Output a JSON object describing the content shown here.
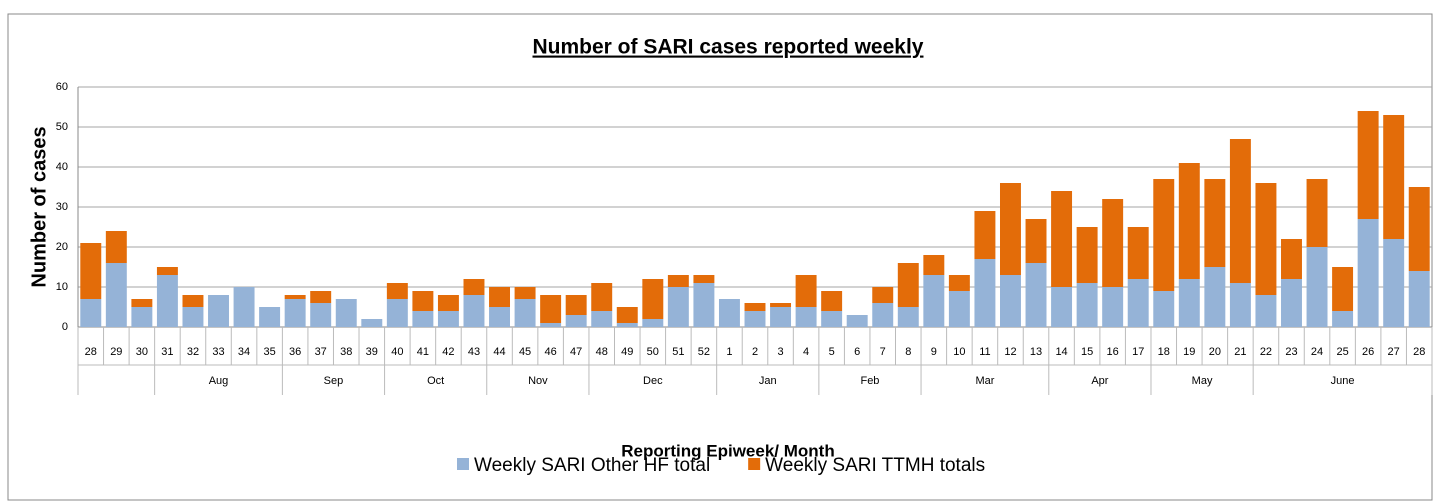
{
  "chart_data": {
    "type": "stacked_bar",
    "title": "Number of SARI cases reported weekly",
    "y_label": "Number of cases",
    "x_label": "Reporting Epiweek/ Month",
    "ylim": [
      0,
      60
    ],
    "yticks": [
      0,
      10,
      20,
      30,
      40,
      50,
      60
    ],
    "grid": true,
    "legend": "bottom",
    "groups": [
      {
        "label": null,
        "categories": [
          "28",
          "29",
          "30"
        ]
      },
      {
        "label": "Aug",
        "categories": [
          "31",
          "32",
          "33",
          "34",
          "35"
        ]
      },
      {
        "label": "Sep",
        "categories": [
          "36",
          "37",
          "38",
          "39"
        ]
      },
      {
        "label": "Oct",
        "categories": [
          "40",
          "41",
          "42",
          "43"
        ]
      },
      {
        "label": "Nov",
        "categories": [
          "44",
          "45",
          "46",
          "47"
        ]
      },
      {
        "label": "Dec",
        "categories": [
          "48",
          "49",
          "50",
          "51",
          "52"
        ]
      },
      {
        "label": "Jan",
        "categories": [
          "1",
          "2",
          "3",
          "4"
        ]
      },
      {
        "label": "Feb",
        "categories": [
          "5",
          "6",
          "7",
          "8"
        ]
      },
      {
        "label": "Mar",
        "categories": [
          "9",
          "10",
          "11",
          "12",
          "13"
        ]
      },
      {
        "label": "Apr",
        "categories": [
          "14",
          "15",
          "16",
          "17"
        ]
      },
      {
        "label": "May",
        "categories": [
          "18",
          "19",
          "20",
          "21"
        ]
      },
      {
        "label": "June",
        "categories": [
          "22",
          "23",
          "24",
          "25",
          "26",
          "27",
          "28"
        ]
      }
    ],
    "series": [
      {
        "name": "Weekly SARI Other HF total",
        "color": "#95b3d7",
        "values": [
          7,
          16,
          5,
          13,
          5,
          8,
          10,
          5,
          7,
          6,
          7,
          2,
          7,
          4,
          4,
          8,
          5,
          7,
          1,
          3,
          4,
          1,
          2,
          10,
          11,
          7,
          4,
          5,
          5,
          4,
          3,
          6,
          5,
          13,
          9,
          17,
          13,
          16,
          10,
          11,
          10,
          12,
          9,
          12,
          15,
          11,
          8,
          12,
          20,
          4,
          27,
          22,
          14
        ]
      },
      {
        "name": "Weekly SARI TTMH totals",
        "color": "#e36c09",
        "values": [
          14,
          8,
          2,
          2,
          3,
          0,
          0,
          0,
          1,
          3,
          0,
          0,
          4,
          5,
          4,
          4,
          5,
          3,
          7,
          5,
          7,
          4,
          10,
          3,
          2,
          0,
          2,
          1,
          8,
          5,
          0,
          4,
          11,
          5,
          4,
          12,
          23,
          11,
          24,
          14,
          22,
          13,
          28,
          29,
          22,
          36,
          28,
          10,
          17,
          11,
          27,
          31,
          21
        ]
      }
    ]
  }
}
